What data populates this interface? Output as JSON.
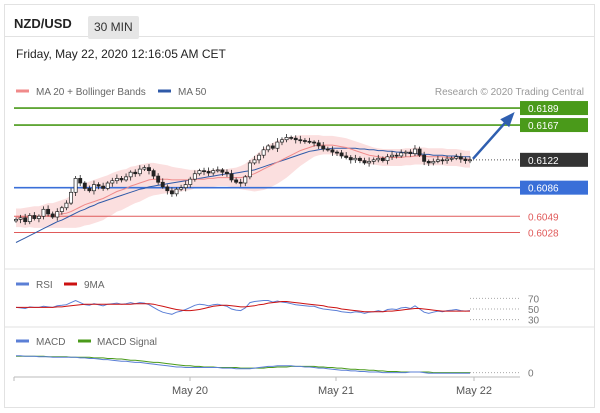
{
  "header": {
    "pair": "NZD/USD",
    "timeframe": "30 MIN",
    "timestamp": "Friday, May 22, 2020 12:16:05 AM CET"
  },
  "colors": {
    "resistance": "#4a9a1a",
    "support": "#3a6fd8",
    "secondary_support": "#e05a5a",
    "current": "#333333",
    "ma20": "#f08a8a",
    "bollinger_band": "#fad4d4",
    "ma50": "#2f5aa8",
    "rsi": "#5b7fd6",
    "rsi_ma": "#cc1111",
    "macd": "#5b7fd6",
    "macd_signal": "#4a9a1a",
    "arrow": "#2f5fb0",
    "candle": "#222222"
  },
  "chart_data": {
    "type": "candlestick",
    "pair": "NZD/USD",
    "timeframe": "30 MIN",
    "legend": [
      "MA 20 + Bollinger Bands",
      "MA 50"
    ],
    "credit": "Research © 2020 Trading Central",
    "x_ticks": [
      "May 20",
      "May 21",
      "May 22"
    ],
    "y_range": [
      0.5995,
      0.6202
    ],
    "levels": [
      {
        "label": "0.6189",
        "value": 0.6189,
        "kind": "resistance"
      },
      {
        "label": "0.6167",
        "value": 0.6167,
        "kind": "resistance"
      },
      {
        "label": "0.6122",
        "value": 0.6122,
        "kind": "current"
      },
      {
        "label": "0.6086",
        "value": 0.6086,
        "kind": "support"
      },
      {
        "label": "0.6049",
        "value": 0.6049,
        "kind": "secondary_support"
      },
      {
        "label": "0.6028",
        "value": 0.6028,
        "kind": "secondary_support"
      }
    ],
    "close": [
      0.6045,
      0.6047,
      0.6042,
      0.605,
      0.6046,
      0.6049,
      0.6058,
      0.6052,
      0.6048,
      0.6055,
      0.606,
      0.6066,
      0.608,
      0.6098,
      0.6092,
      0.6085,
      0.6082,
      0.609,
      0.6088,
      0.6085,
      0.6092,
      0.6095,
      0.6098,
      0.6096,
      0.61,
      0.6106,
      0.6104,
      0.611,
      0.6112,
      0.6108,
      0.6101,
      0.6093,
      0.6087,
      0.6082,
      0.6078,
      0.6084,
      0.6086,
      0.609,
      0.6097,
      0.6104,
      0.6108,
      0.6107,
      0.6105,
      0.6108,
      0.6109,
      0.6106,
      0.6104,
      0.6096,
      0.6093,
      0.6092,
      0.61,
      0.6118,
      0.6122,
      0.6128,
      0.6135,
      0.614,
      0.6137,
      0.6145,
      0.6148,
      0.6151,
      0.615,
      0.6148,
      0.6147,
      0.6146,
      0.6145,
      0.6144,
      0.614,
      0.6136,
      0.6135,
      0.6132,
      0.6131,
      0.6127,
      0.6125,
      0.6122,
      0.6124,
      0.6121,
      0.6118,
      0.612,
      0.6122,
      0.6124,
      0.6121,
      0.6126,
      0.6128,
      0.6127,
      0.6131,
      0.6132,
      0.613,
      0.6136,
      0.6128,
      0.612,
      0.6118,
      0.612,
      0.6122,
      0.6121,
      0.6123,
      0.6124,
      0.6126,
      0.6123,
      0.6121,
      0.6122
    ],
    "ma20": [
      0.6047,
      0.6047,
      0.6047,
      0.6048,
      0.6048,
      0.6048,
      0.6049,
      0.605,
      0.605,
      0.6051,
      0.6052,
      0.6053,
      0.6055,
      0.6058,
      0.6061,
      0.6064,
      0.6066,
      0.6068,
      0.607,
      0.6072,
      0.6075,
      0.6078,
      0.6081,
      0.6083,
      0.6085,
      0.6088,
      0.609,
      0.6092,
      0.6094,
      0.6096,
      0.6097,
      0.6097,
      0.6097,
      0.6097,
      0.6096,
      0.6096,
      0.6096,
      0.6096,
      0.6096,
      0.6097,
      0.6097,
      0.6097,
      0.6098,
      0.6098,
      0.6099,
      0.6099,
      0.6099,
      0.6099,
      0.6099,
      0.6099,
      0.61,
      0.6102,
      0.6104,
      0.6107,
      0.611,
      0.6113,
      0.6116,
      0.6119,
      0.6122,
      0.6125,
      0.6128,
      0.6131,
      0.6134,
      0.6136,
      0.6138,
      0.614,
      0.6141,
      0.6141,
      0.6141,
      0.6141,
      0.614,
      0.6139,
      0.6138,
      0.6136,
      0.6134,
      0.6132,
      0.613,
      0.6128,
      0.6127,
      0.6126,
      0.6125,
      0.6125,
      0.6125,
      0.6125,
      0.6125,
      0.6126,
      0.6126,
      0.6127,
      0.6127,
      0.6127,
      0.6126,
      0.6126,
      0.6126,
      0.6126,
      0.6125,
      0.6125,
      0.6125,
      0.6124,
      0.6123,
      0.6123
    ],
    "ma50": [
      0.6015,
      0.6018,
      0.6021,
      0.6024,
      0.6027,
      0.603,
      0.6033,
      0.6036,
      0.6039,
      0.6042,
      0.6044,
      0.6047,
      0.605,
      0.6053,
      0.6056,
      0.6058,
      0.6061,
      0.6063,
      0.6066,
      0.6068,
      0.607,
      0.6072,
      0.6074,
      0.6076,
      0.6078,
      0.608,
      0.6082,
      0.6084,
      0.6085,
      0.6087,
      0.6088,
      0.6089,
      0.609,
      0.6091,
      0.6092,
      0.6093,
      0.6094,
      0.6095,
      0.6096,
      0.6097,
      0.6098,
      0.6099,
      0.61,
      0.6101,
      0.6102,
      0.6103,
      0.6104,
      0.6104,
      0.6105,
      0.6106,
      0.6107,
      0.6108,
      0.6109,
      0.6111,
      0.6113,
      0.6115,
      0.6117,
      0.6119,
      0.6121,
      0.6123,
      0.6125,
      0.6127,
      0.6129,
      0.6131,
      0.6133,
      0.6134,
      0.6135,
      0.6136,
      0.6136,
      0.6137,
      0.6137,
      0.6137,
      0.6137,
      0.6137,
      0.6137,
      0.6136,
      0.6136,
      0.6135,
      0.6135,
      0.6134,
      0.6134,
      0.6133,
      0.6133,
      0.6132,
      0.6132,
      0.6131,
      0.6131,
      0.613,
      0.613,
      0.6129,
      0.6129,
      0.6128,
      0.6128,
      0.6128,
      0.6127,
      0.6127,
      0.6127,
      0.6126,
      0.6126,
      0.6126
    ],
    "bollinger_halfwidth": [
      0.0012,
      0.0012,
      0.0013,
      0.0013,
      0.0014,
      0.0014,
      0.0015,
      0.0016,
      0.0016,
      0.0017,
      0.0018,
      0.0019,
      0.0021,
      0.0024,
      0.0026,
      0.0027,
      0.0028,
      0.0028,
      0.0028,
      0.0028,
      0.0027,
      0.0027,
      0.0026,
      0.0026,
      0.0025,
      0.0025,
      0.0024,
      0.0024,
      0.0023,
      0.0022,
      0.0021,
      0.002,
      0.0019,
      0.0018,
      0.0017,
      0.0016,
      0.0015,
      0.0014,
      0.0013,
      0.0012,
      0.0012,
      0.0011,
      0.0011,
      0.0011,
      0.0011,
      0.0011,
      0.0011,
      0.0012,
      0.0013,
      0.0015,
      0.0017,
      0.002,
      0.0023,
      0.0025,
      0.0027,
      0.0028,
      0.0028,
      0.0028,
      0.0027,
      0.0026,
      0.0024,
      0.0022,
      0.002,
      0.0018,
      0.0016,
      0.0014,
      0.0013,
      0.0012,
      0.0012,
      0.0012,
      0.0012,
      0.0012,
      0.0012,
      0.0012,
      0.0012,
      0.0012,
      0.0012,
      0.0012,
      0.0011,
      0.0011,
      0.0011,
      0.0011,
      0.0011,
      0.0011,
      0.0011,
      0.0011,
      0.0011,
      0.0011,
      0.0011,
      0.0011,
      0.0011,
      0.0011,
      0.0011,
      0.0011,
      0.0011,
      0.0011,
      0.0011,
      0.0011,
      0.0011,
      0.0011
    ],
    "rsi": {
      "legend": [
        "RSI",
        "9MA"
      ],
      "levels": [
        "70",
        "50",
        "30"
      ],
      "range": [
        20,
        80
      ],
      "rsi": [
        53,
        52,
        51,
        54,
        53,
        53,
        55,
        54,
        53,
        56,
        57,
        58,
        62,
        66,
        62,
        58,
        57,
        60,
        58,
        56,
        59,
        60,
        61,
        59,
        60,
        62,
        60,
        62,
        61,
        58,
        53,
        48,
        44,
        42,
        40,
        44,
        46,
        49,
        53,
        57,
        59,
        58,
        56,
        58,
        59,
        57,
        55,
        50,
        48,
        47,
        52,
        62,
        64,
        65,
        66,
        66,
        63,
        65,
        63,
        62,
        60,
        58,
        57,
        56,
        55,
        55,
        52,
        50,
        49,
        48,
        47,
        45,
        44,
        43,
        45,
        44,
        42,
        44,
        45,
        47,
        45,
        49,
        50,
        49,
        52,
        53,
        51,
        56,
        50,
        44,
        42,
        44,
        46,
        45,
        47,
        48,
        49,
        47,
        46,
        47
      ],
      "ma": [
        53,
        53,
        53,
        53,
        53,
        53,
        53,
        53,
        53,
        54,
        54,
        55,
        56,
        57,
        58,
        59,
        59,
        59,
        59,
        59,
        59,
        59,
        59,
        59,
        59,
        59,
        60,
        60,
        60,
        60,
        59,
        57,
        55,
        53,
        51,
        49,
        48,
        47,
        47,
        48,
        49,
        51,
        53,
        55,
        56,
        57,
        57,
        56,
        55,
        54,
        54,
        55,
        56,
        58,
        59,
        61,
        62,
        63,
        64,
        64,
        63,
        62,
        61,
        60,
        59,
        58,
        57,
        56,
        54,
        53,
        52,
        50,
        49,
        48,
        47,
        46,
        45,
        45,
        45,
        45,
        45,
        46,
        46,
        47,
        48,
        49,
        50,
        51,
        51,
        50,
        49,
        48,
        47,
        46,
        46,
        46,
        46,
        46,
        46,
        46
      ]
    },
    "macd": {
      "legend": [
        "MACD",
        "MACD Signal"
      ],
      "levels": [
        "0"
      ],
      "range": [
        -0.0006,
        0.004
      ],
      "macd": [
        0.003,
        0.003,
        0.0029,
        0.0029,
        0.0029,
        0.0028,
        0.0028,
        0.0028,
        0.0027,
        0.0027,
        0.0027,
        0.0027,
        0.0027,
        0.0027,
        0.0026,
        0.0026,
        0.0025,
        0.0025,
        0.0024,
        0.0023,
        0.0023,
        0.0022,
        0.0021,
        0.002,
        0.002,
        0.0019,
        0.0018,
        0.0018,
        0.0017,
        0.0016,
        0.0015,
        0.0014,
        0.0013,
        0.0012,
        0.0011,
        0.001,
        0.001,
        0.0009,
        0.0009,
        0.0009,
        0.0009,
        0.0009,
        0.0009,
        0.0009,
        0.0009,
        0.0008,
        0.0008,
        0.0008,
        0.0007,
        0.0007,
        0.0007,
        0.0007,
        0.0008,
        0.0009,
        0.001,
        0.0011,
        0.0011,
        0.0012,
        0.0012,
        0.0012,
        0.0012,
        0.0011,
        0.0011,
        0.001,
        0.001,
        0.0009,
        0.0008,
        0.0008,
        0.0007,
        0.0006,
        0.0005,
        0.0004,
        0.0004,
        0.0003,
        0.0003,
        0.0002,
        0.0002,
        0.0001,
        0.0001,
        0.0001,
        0.0,
        0.0,
        0.0,
        0.0,
        0.0,
        0.0,
        0.0001,
        0.0001,
        0.0001,
        0.0,
        -0.0001,
        -0.0001,
        -0.0001,
        -0.0001,
        -0.0001,
        -0.0001,
        -0.0001,
        -0.0001,
        -0.0001,
        -0.0001
      ],
      "signal": [
        0.0029,
        0.0029,
        0.0029,
        0.0029,
        0.0029,
        0.0029,
        0.0029,
        0.0028,
        0.0028,
        0.0028,
        0.0028,
        0.0028,
        0.0027,
        0.0027,
        0.0027,
        0.0027,
        0.0027,
        0.0026,
        0.0026,
        0.0026,
        0.0025,
        0.0025,
        0.0024,
        0.0024,
        0.0023,
        0.0022,
        0.0022,
        0.0021,
        0.002,
        0.0019,
        0.0018,
        0.0018,
        0.0017,
        0.0016,
        0.0015,
        0.0014,
        0.0013,
        0.0012,
        0.0012,
        0.0011,
        0.0011,
        0.001,
        0.001,
        0.001,
        0.0009,
        0.0009,
        0.0009,
        0.0009,
        0.0009,
        0.0008,
        0.0008,
        0.0008,
        0.0008,
        0.0008,
        0.0008,
        0.0009,
        0.0009,
        0.001,
        0.001,
        0.001,
        0.0011,
        0.0011,
        0.0011,
        0.0011,
        0.0011,
        0.0011,
        0.001,
        0.001,
        0.0009,
        0.0009,
        0.0008,
        0.0008,
        0.0007,
        0.0006,
        0.0006,
        0.0005,
        0.0005,
        0.0004,
        0.0004,
        0.0003,
        0.0003,
        0.0002,
        0.0002,
        0.0002,
        0.0001,
        0.0001,
        0.0001,
        0.0001,
        0.0001,
        0.0001,
        0.0001,
        0.0,
        0.0,
        0.0,
        0.0,
        0.0,
        0.0,
        0.0,
        0.0,
        0.0
      ]
    }
  }
}
